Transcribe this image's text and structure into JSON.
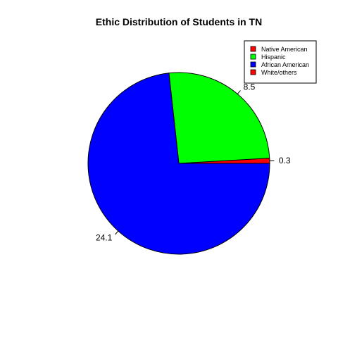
{
  "chart_data": {
    "type": "pie",
    "title": "Ethic Distribution of Students in TN",
    "slices": [
      {
        "label": "Native American",
        "value": 0.3,
        "color": "#ff0000"
      },
      {
        "label": "Hispanic",
        "value": 8.5,
        "color": "#00ff00"
      },
      {
        "label": "African American",
        "value": 24.1,
        "color": "#0000ff"
      },
      {
        "label": "White/others",
        "value": 0.0,
        "color": "#ff0000"
      }
    ],
    "slice_label_values": [
      "0.3",
      "8.5",
      "24.1"
    ],
    "legend": {
      "placement": "top-right",
      "entries": [
        {
          "label": "Native American",
          "color": "#ff0000"
        },
        {
          "label": "Hispanic",
          "color": "#00ff00"
        },
        {
          "label": "African American",
          "color": "#0000ff"
        },
        {
          "label": "White/others",
          "color": "#ff0000"
        }
      ]
    },
    "start_angle_deg": 0,
    "direction": "counterclockwise"
  }
}
